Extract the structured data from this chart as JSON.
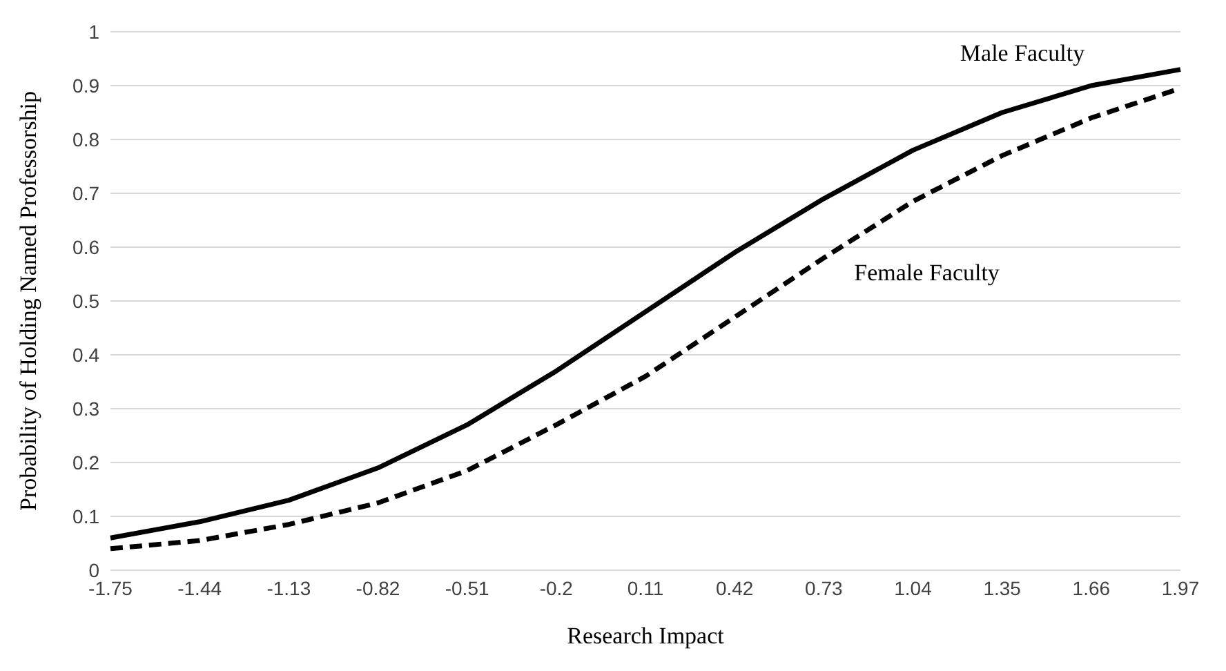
{
  "chart_data": {
    "type": "line",
    "xlabel": "Research Impact",
    "ylabel": "Probability of Holding Named Professorship",
    "categories": [
      "-1.75",
      "-1.44",
      "-1.13",
      "-0.82",
      "-0.51",
      "-0.2",
      "0.11",
      "0.42",
      "0.73",
      "1.04",
      "1.35",
      "1.66",
      "1.97"
    ],
    "series": [
      {
        "name": "Male Faculty",
        "color": "#000000",
        "line_style": "solid",
        "values": [
          0.06,
          0.09,
          0.13,
          0.19,
          0.27,
          0.37,
          0.48,
          0.59,
          0.69,
          0.78,
          0.85,
          0.9,
          0.93
        ]
      },
      {
        "name": "Female Faculty",
        "color": "#000000",
        "line_style": "dashed",
        "values": [
          0.04,
          0.055,
          0.085,
          0.125,
          0.185,
          0.27,
          0.36,
          0.47,
          0.58,
          0.685,
          0.77,
          0.84,
          0.895
        ]
      }
    ],
    "ylim": [
      0,
      1
    ],
    "yticks": [
      0,
      0.1,
      0.2,
      0.3,
      0.4,
      0.5,
      0.6,
      0.7,
      0.8,
      0.9,
      1
    ],
    "grid": "y",
    "marker": "none",
    "legend": false
  }
}
